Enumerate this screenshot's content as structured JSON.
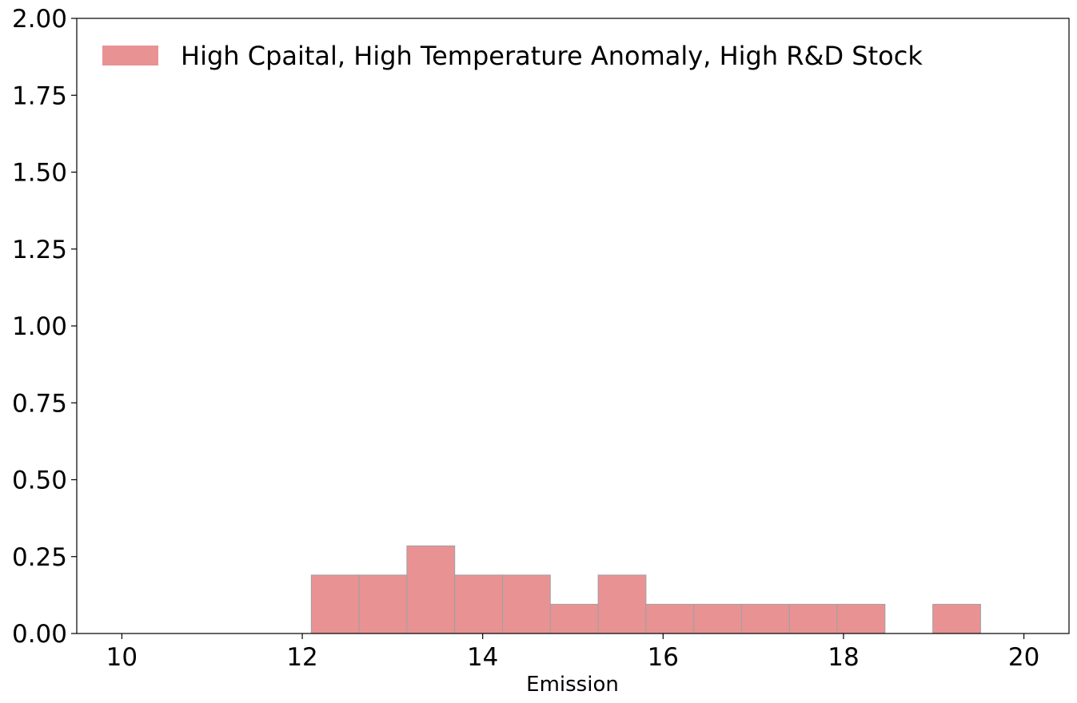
{
  "chart_data": {
    "type": "bar",
    "subtype": "histogram",
    "xlabel": "Emission",
    "ylabel": "",
    "xlim": [
      9.5,
      20.5
    ],
    "ylim": [
      0,
      2.0
    ],
    "x_ticks": [
      "10",
      "12",
      "14",
      "16",
      "18",
      "20"
    ],
    "y_ticks": [
      "0.00",
      "0.25",
      "0.50",
      "0.75",
      "1.00",
      "1.25",
      "1.50",
      "1.75",
      "2.00"
    ],
    "grid": false,
    "legend_position": "top-left",
    "series": [
      {
        "name": "High Cpaital, High Temperature Anomaly, High R&D Stock",
        "color": "#e89294",
        "edge_color": "#a0a0a0",
        "bins": [
          {
            "x0": 12.1,
            "x1": 12.63,
            "value": 0.19
          },
          {
            "x0": 12.63,
            "x1": 13.16,
            "value": 0.19
          },
          {
            "x0": 13.16,
            "x1": 13.69,
            "value": 0.285
          },
          {
            "x0": 13.69,
            "x1": 14.22,
            "value": 0.19
          },
          {
            "x0": 14.22,
            "x1": 14.75,
            "value": 0.19
          },
          {
            "x0": 14.75,
            "x1": 15.28,
            "value": 0.095
          },
          {
            "x0": 15.28,
            "x1": 15.81,
            "value": 0.19
          },
          {
            "x0": 15.81,
            "x1": 16.34,
            "value": 0.095
          },
          {
            "x0": 16.34,
            "x1": 16.87,
            "value": 0.095
          },
          {
            "x0": 16.87,
            "x1": 17.4,
            "value": 0.095
          },
          {
            "x0": 17.4,
            "x1": 17.93,
            "value": 0.095
          },
          {
            "x0": 17.93,
            "x1": 18.46,
            "value": 0.095
          },
          {
            "x0": 18.99,
            "x1": 19.52,
            "value": 0.095
          }
        ]
      }
    ]
  }
}
